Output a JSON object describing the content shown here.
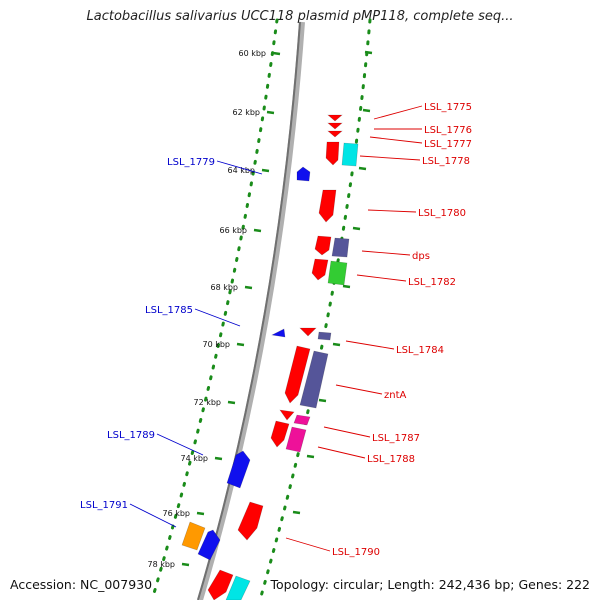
{
  "title": "Lactobacillus salivarius UCC118 plasmid pMP118, complete seq...",
  "footer": {
    "accession": "Accession: NC_007930",
    "stats": "Topology: circular; Length: 242,436 bp; Genes: 222"
  },
  "colors": {
    "backbone": "#8c8c8c",
    "scale_dots": "#1a8c1a",
    "forward_label": "#dd0000",
    "reverse_label": "#0000cc",
    "red": "#ff0000",
    "cyan": "#00e5e5",
    "blue": "#1010ee",
    "purple": "#555599",
    "green": "#33cc33",
    "magenta": "#ee1199",
    "orange": "#ff9900"
  },
  "scale_ticks": [
    "60 kbp",
    "62 kbp",
    "64 kbp",
    "66 kbp",
    "68 kbp",
    "70 kbp",
    "72 kbp",
    "74 kbp",
    "76 kbp",
    "78 kbp"
  ],
  "gene_labels": [
    {
      "text": "LSL_1775",
      "strand": "forward"
    },
    {
      "text": "LSL_1776",
      "strand": "forward"
    },
    {
      "text": "LSL_1777",
      "strand": "forward"
    },
    {
      "text": "LSL_1778",
      "strand": "forward"
    },
    {
      "text": "LSL_1780",
      "strand": "forward"
    },
    {
      "text": "dps",
      "strand": "forward"
    },
    {
      "text": "LSL_1782",
      "strand": "forward"
    },
    {
      "text": "LSL_1784",
      "strand": "forward"
    },
    {
      "text": "zntA",
      "strand": "forward"
    },
    {
      "text": "LSL_1787",
      "strand": "forward"
    },
    {
      "text": "LSL_1788",
      "strand": "forward"
    },
    {
      "text": "LSL_1790",
      "strand": "forward"
    },
    {
      "text": "LSL_1779",
      "strand": "reverse"
    },
    {
      "text": "LSL_1785",
      "strand": "reverse"
    },
    {
      "text": "LSL_1789",
      "strand": "reverse"
    },
    {
      "text": "LSL_1791",
      "strand": "reverse"
    }
  ]
}
